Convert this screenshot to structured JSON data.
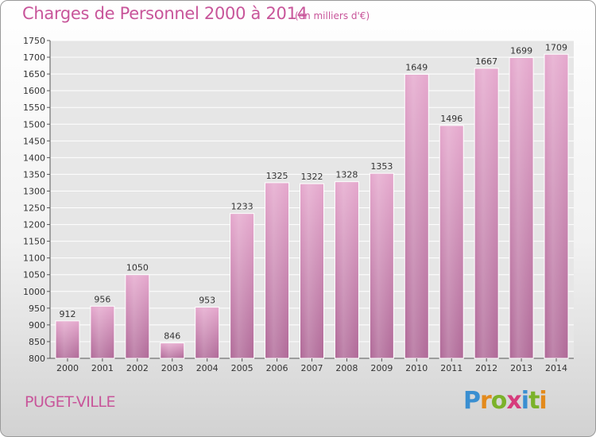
{
  "header": {
    "title": "Charges de Personnel 2000 à 2014",
    "subtitle": "(en milliers d'€)"
  },
  "footer": {
    "city": "PUGET-VILLE",
    "logo": [
      "P",
      "r",
      "o",
      "x",
      "i",
      "t",
      "i"
    ]
  },
  "colors": {
    "title": "#c8559a",
    "bar_top": "#e5a8cd",
    "bar_bottom": "#b06a98",
    "grid": "#ffffff",
    "background": "#e6e6e6"
  },
  "chart_data": {
    "type": "bar",
    "categories": [
      "2000",
      "2001",
      "2002",
      "2003",
      "2004",
      "2005",
      "2006",
      "2007",
      "2008",
      "2009",
      "2010",
      "2011",
      "2012",
      "2013",
      "2014"
    ],
    "values": [
      912,
      956,
      1050,
      846,
      953,
      1233,
      1325,
      1322,
      1328,
      1353,
      1649,
      1496,
      1667,
      1699,
      1709
    ],
    "title": "Charges de Personnel 2000 à 2014",
    "subtitle": "(en milliers d'€)",
    "ylim": [
      800,
      1750
    ],
    "yticks": [
      800,
      850,
      900,
      950,
      1000,
      1050,
      1100,
      1150,
      1200,
      1250,
      1300,
      1350,
      1400,
      1450,
      1500,
      1550,
      1600,
      1650,
      1700,
      1750
    ],
    "grid": true,
    "data_labels": true
  }
}
